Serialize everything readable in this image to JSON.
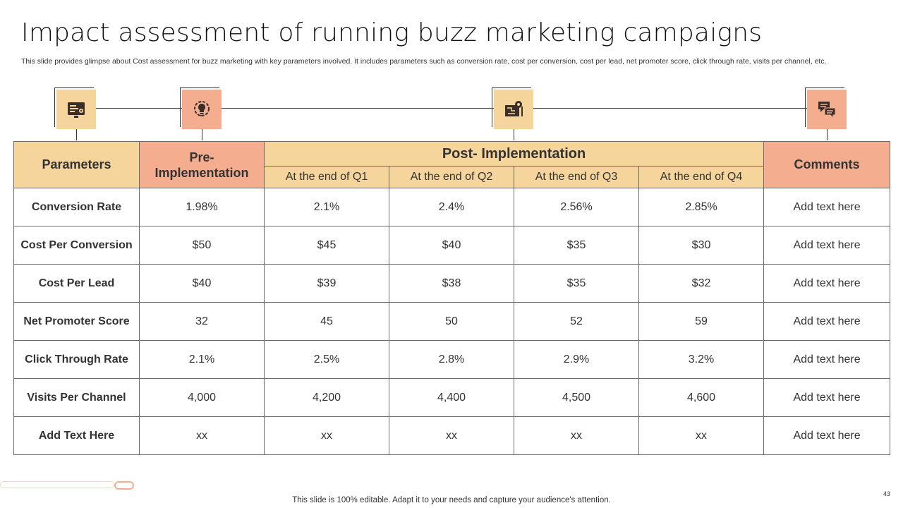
{
  "slide": {
    "title": "Impact assessment of running buzz marketing campaigns",
    "subtitle": "This slide provides glimpse about Cost assessment for buzz  marketing with key parameters involved. It includes parameters such as conversion rate, cost per conversion, cost per lead, net promoter score, click through rate, visits per channel, etc.",
    "footer": "This slide is 100% editable. Adapt it to your needs and capture your audience's attention.",
    "page_number": "43"
  },
  "timeline": {
    "icons": [
      "dashboard-settings-icon",
      "lightbulb-gear-icon",
      "blueprint-gear-icon",
      "chat-bubbles-icon"
    ],
    "colors": {
      "tan": "#f5d59c",
      "salmon": "#f5ad8f"
    }
  },
  "table": {
    "headers": {
      "parameters": "Parameters",
      "pre_line1": "Pre-",
      "pre_line2": "Implementation",
      "post": "Post- Implementation",
      "comments": "Comments",
      "quarters": [
        "At the end of Q1",
        "At the end of Q2",
        "At the end of Q3",
        "At the end of Q4"
      ]
    },
    "rows": [
      [
        "Conversion Rate",
        "1.98%",
        "2.1%",
        "2.4%",
        "2.56%",
        "2.85%",
        "Add text here"
      ],
      [
        "Cost Per Conversion",
        "$50",
        "$45",
        "$40",
        "$35",
        "$30",
        "Add text here"
      ],
      [
        "Cost Per Lead",
        "$40",
        "$39",
        "$38",
        "$35",
        "$32",
        "Add text here"
      ],
      [
        "Net Promoter Score",
        "32",
        "45",
        "50",
        "52",
        "59",
        "Add text here"
      ],
      [
        "Click Through Rate",
        "2.1%",
        "2.5%",
        "2.8%",
        "2.9%",
        "3.2%",
        "Add text here"
      ],
      [
        "Visits Per Channel",
        "4,000",
        "4,200",
        "4,400",
        "4,500",
        "4,600",
        "Add text here"
      ],
      [
        "Add Text Here",
        "xx",
        "xx",
        "xx",
        "xx",
        "xx",
        "Add text here"
      ]
    ]
  }
}
